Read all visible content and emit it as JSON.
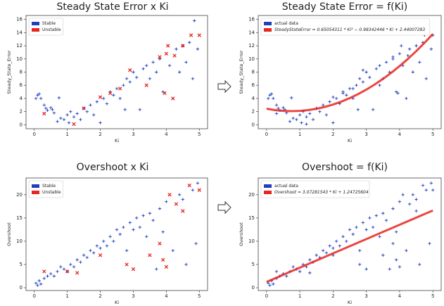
{
  "chart_data": [
    {
      "type": "scatter",
      "title": "Steady State Error x Ki",
      "x_label": "Ki",
      "y_label": "Steady_State_Error",
      "xlim": [
        -0.25,
        5.25
      ],
      "ylim": [
        -0.6,
        16.6
      ],
      "xticks": [
        0,
        1,
        2,
        3,
        4,
        5
      ],
      "yticks": [
        0,
        2,
        4,
        6,
        8,
        10,
        12,
        14,
        16
      ],
      "legend": "upper left",
      "series": [
        {
          "name": "Stable",
          "color": "#1f3fbf",
          "marker": "plus",
          "x": [
            0.05,
            0.1,
            0.15,
            0.2,
            0.3,
            0.35,
            0.4,
            0.5,
            0.55,
            0.6,
            0.7,
            0.75,
            0.8,
            0.9,
            1.0,
            1.05,
            1.1,
            1.2,
            1.3,
            1.4,
            1.5,
            1.6,
            1.7,
            1.8,
            1.9,
            2.0,
            2.1,
            2.2,
            2.3,
            2.4,
            2.5,
            2.6,
            2.7,
            2.75,
            2.8,
            2.9,
            3.0,
            3.1,
            3.2,
            3.3,
            3.4,
            3.5,
            3.6,
            3.7,
            3.8,
            3.9,
            4.1,
            4.3,
            4.4,
            4.5,
            4.6,
            4.7,
            4.8,
            4.85,
            4.95
          ],
          "values": [
            4.0,
            4.5,
            4.7,
            4.0,
            3.0,
            2.5,
            2.2,
            2.6,
            2.3,
            1.8,
            0.5,
            4.1,
            1.0,
            0.8,
            1.5,
            0.3,
            2.0,
            1.2,
            1.7,
            0.8,
            2.5,
            2.0,
            3.0,
            1.5,
            3.5,
            0.3,
            4.0,
            3.2,
            5.0,
            4.5,
            5.5,
            4.0,
            6.0,
            2.3,
            7.0,
            6.5,
            8.0,
            7.2,
            2.3,
            8.5,
            9.0,
            7.0,
            9.5,
            8.0,
            10.0,
            5.0,
            9.0,
            11.5,
            8.0,
            12.0,
            9.5,
            12.5,
            7.0,
            15.8,
            11.5
          ]
        },
        {
          "name": "Unstable",
          "color": "#e8261e",
          "marker": "cross",
          "x": [
            0.3,
            1.2,
            1.5,
            2.0,
            2.3,
            2.6,
            2.9,
            3.4,
            3.8,
            3.95,
            4.0,
            4.05,
            4.2,
            4.25,
            4.5,
            4.75,
            5.0
          ],
          "values": [
            1.7,
            0.1,
            2.5,
            4.2,
            4.8,
            5.5,
            8.3,
            6.0,
            10.3,
            4.8,
            10.8,
            12.0,
            4.0,
            10.5,
            12.0,
            13.6,
            13.6
          ]
        }
      ]
    },
    {
      "type": "scatter",
      "title": "Steady State Error = f(Ki)",
      "x_label": "Ki",
      "y_label": "Steady_State_Error",
      "xlim": [
        -0.25,
        5.25
      ],
      "ylim": [
        -0.6,
        16.6
      ],
      "xticks": [
        0,
        1,
        2,
        3,
        4,
        5
      ],
      "yticks": [
        0,
        2,
        4,
        6,
        8,
        10,
        12,
        14,
        16
      ],
      "legend": "upper left",
      "series": [
        {
          "name": "actual data",
          "color": "#1f3fbf",
          "marker": "plus",
          "x": [
            0.05,
            0.1,
            0.15,
            0.2,
            0.3,
            0.35,
            0.4,
            0.5,
            0.55,
            0.6,
            0.7,
            0.75,
            0.8,
            0.9,
            1.0,
            1.05,
            1.1,
            1.2,
            1.3,
            1.4,
            1.5,
            1.6,
            1.7,
            1.8,
            1.9,
            2.0,
            2.1,
            2.2,
            2.3,
            2.4,
            2.5,
            2.6,
            2.7,
            2.75,
            2.8,
            2.9,
            3.0,
            3.1,
            3.2,
            3.3,
            3.4,
            3.5,
            3.6,
            3.7,
            3.8,
            3.9,
            4.1,
            4.3,
            4.4,
            4.5,
            4.6,
            4.7,
            4.8,
            4.85,
            4.95,
            0.3,
            1.2,
            1.5,
            2.0,
            2.3,
            2.6,
            2.9,
            3.4,
            3.8,
            3.95,
            4.0,
            4.05,
            4.2,
            4.25,
            4.5,
            4.75,
            5.0
          ],
          "values": [
            4.0,
            4.5,
            4.7,
            4.0,
            3.0,
            2.5,
            2.2,
            2.6,
            2.3,
            1.8,
            0.5,
            4.1,
            1.0,
            0.8,
            1.5,
            0.3,
            2.0,
            1.2,
            1.7,
            0.8,
            2.5,
            2.0,
            3.0,
            1.5,
            3.5,
            0.3,
            4.0,
            3.2,
            5.0,
            4.5,
            5.5,
            4.0,
            6.0,
            2.3,
            7.0,
            6.5,
            8.0,
            7.2,
            2.3,
            8.5,
            9.0,
            7.0,
            9.5,
            8.0,
            10.0,
            5.0,
            9.0,
            11.5,
            8.0,
            12.0,
            9.5,
            12.5,
            7.0,
            15.8,
            11.5,
            1.7,
            0.1,
            2.5,
            4.2,
            4.8,
            5.5,
            8.3,
            6.0,
            10.3,
            4.8,
            10.8,
            12.0,
            4.0,
            10.5,
            12.0,
            13.6,
            13.6
          ]
        },
        {
          "name": "SteadyStateError = 0.65054311 * Ki² − 0.98342446 * Ki + 2.44007283",
          "color": "#e8261e",
          "marker": "line",
          "x": [
            0,
            0.25,
            0.5,
            0.75,
            1,
            1.25,
            1.5,
            1.75,
            2,
            2.25,
            2.5,
            2.75,
            3,
            3.25,
            3.5,
            3.75,
            4,
            4.25,
            4.5,
            4.75,
            5
          ],
          "values": [
            2.44,
            2.235,
            2.111,
            2.068,
            2.107,
            2.227,
            2.429,
            2.711,
            3.075,
            3.521,
            4.047,
            4.655,
            5.345,
            6.115,
            6.967,
            7.9,
            8.915,
            10.011,
            11.188,
            12.447,
            13.786
          ]
        }
      ]
    },
    {
      "type": "scatter",
      "title": "Overshoot x Ki",
      "x_label": "Ki",
      "y_label": "Overshoot",
      "xlim": [
        -0.25,
        5.25
      ],
      "ylim": [
        -0.6,
        23.6
      ],
      "xticks": [
        0,
        1,
        2,
        3,
        4,
        5
      ],
      "yticks": [
        0,
        5,
        10,
        15,
        20
      ],
      "legend": "upper left",
      "series": [
        {
          "name": "Stable",
          "color": "#1f3fbf",
          "marker": "plus",
          "x": [
            0.05,
            0.1,
            0.15,
            0.2,
            0.3,
            0.4,
            0.5,
            0.6,
            0.7,
            0.8,
            0.9,
            1.0,
            1.1,
            1.2,
            1.3,
            1.4,
            1.5,
            1.6,
            1.7,
            1.8,
            1.9,
            2.0,
            2.1,
            2.2,
            2.3,
            2.4,
            2.5,
            2.6,
            2.7,
            2.8,
            2.9,
            3.0,
            3.1,
            3.2,
            3.3,
            3.4,
            3.5,
            3.6,
            3.7,
            3.8,
            3.9,
            4.0,
            4.2,
            4.4,
            4.5,
            4.6,
            4.8,
            4.9,
            4.95
          ],
          "values": [
            1.0,
            0.5,
            1.5,
            0.8,
            2.0,
            2.5,
            3.0,
            2.5,
            3.5,
            4.5,
            4.0,
            3.5,
            5.0,
            4.5,
            6.0,
            5.5,
            7.0,
            6.5,
            8.0,
            7.5,
            9.0,
            8.5,
            10.0,
            9.0,
            11.0,
            10.0,
            12.5,
            11.5,
            13.0,
            8.0,
            14.0,
            12.5,
            15.0,
            13.0,
            15.5,
            11.0,
            16.0,
            14.5,
            4.0,
            17.0,
            12.0,
            18.5,
            8.0,
            20.0,
            19.0,
            5.0,
            21.0,
            9.5,
            22.5
          ]
        },
        {
          "name": "Unstable",
          "color": "#e8261e",
          "marker": "cross",
          "x": [
            0.3,
            1.0,
            1.3,
            2.0,
            2.8,
            3.0,
            3.5,
            3.8,
            3.9,
            4.0,
            4.1,
            4.3,
            4.5,
            4.7,
            5.0
          ],
          "values": [
            3.5,
            3.5,
            3.2,
            7.0,
            5.0,
            4.0,
            7.0,
            9.5,
            6.0,
            4.5,
            20.0,
            18.0,
            16.5,
            22.0,
            21.0
          ]
        }
      ]
    },
    {
      "type": "scatter",
      "title": "Overshoot = f(Ki)",
      "x_label": "Ki",
      "y_label": "Overshoot",
      "xlim": [
        -0.25,
        5.25
      ],
      "ylim": [
        -0.6,
        23.6
      ],
      "xticks": [
        0,
        1,
        2,
        3,
        4,
        5
      ],
      "yticks": [
        0,
        5,
        10,
        15,
        20
      ],
      "legend": "upper left",
      "series": [
        {
          "name": "actual data",
          "color": "#1f3fbf",
          "marker": "plus",
          "x": [
            0.05,
            0.1,
            0.15,
            0.2,
            0.3,
            0.4,
            0.5,
            0.6,
            0.7,
            0.8,
            0.9,
            1.0,
            1.1,
            1.2,
            1.3,
            1.4,
            1.5,
            1.6,
            1.7,
            1.8,
            1.9,
            2.0,
            2.1,
            2.2,
            2.3,
            2.4,
            2.5,
            2.6,
            2.7,
            2.8,
            2.9,
            3.0,
            3.1,
            3.2,
            3.3,
            3.4,
            3.5,
            3.6,
            3.7,
            3.8,
            3.9,
            4.0,
            4.2,
            4.4,
            4.5,
            4.6,
            4.8,
            4.9,
            4.95,
            0.3,
            1.0,
            1.3,
            2.0,
            2.8,
            3.0,
            3.5,
            3.8,
            3.9,
            4.0,
            4.1,
            4.3,
            4.5,
            4.7,
            5.0
          ],
          "values": [
            1.0,
            0.5,
            1.5,
            0.8,
            2.0,
            2.5,
            3.0,
            2.5,
            3.5,
            4.5,
            4.0,
            3.5,
            5.0,
            4.5,
            6.0,
            5.5,
            7.0,
            6.5,
            8.0,
            7.5,
            9.0,
            8.5,
            10.0,
            9.0,
            11.0,
            10.0,
            12.5,
            11.5,
            13.0,
            8.0,
            14.0,
            12.5,
            15.0,
            13.0,
            15.5,
            11.0,
            16.0,
            14.5,
            4.0,
            17.0,
            12.0,
            18.5,
            8.0,
            20.0,
            19.0,
            5.0,
            21.0,
            9.5,
            22.5,
            3.5,
            3.5,
            3.2,
            7.0,
            5.0,
            4.0,
            7.0,
            9.5,
            6.0,
            4.5,
            20.0,
            18.0,
            16.5,
            22.0,
            21.0
          ]
        },
        {
          "name": "Overshoot = 3.07281543 * Ki + 1.24725604",
          "color": "#e8261e",
          "marker": "line",
          "x": [
            0,
            0.25,
            0.5,
            0.75,
            1,
            1.25,
            1.5,
            1.75,
            2,
            2.25,
            2.5,
            2.75,
            3,
            3.25,
            3.5,
            3.75,
            4,
            4.25,
            4.5,
            4.75,
            5
          ],
          "values": [
            1.247,
            2.015,
            2.784,
            3.552,
            4.32,
            5.088,
            5.857,
            6.625,
            7.393,
            8.161,
            8.929,
            9.698,
            10.466,
            11.234,
            12.002,
            12.77,
            13.539,
            14.307,
            15.075,
            15.843,
            16.611
          ]
        }
      ]
    }
  ]
}
